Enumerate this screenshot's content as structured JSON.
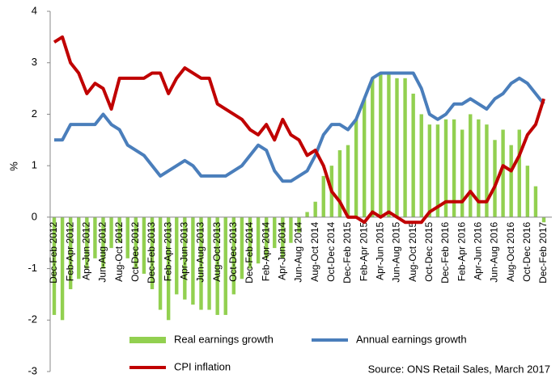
{
  "chart_data": {
    "type": "bar-line",
    "y_label": "%",
    "source": "Source: ONS Retail Sales, March 2017",
    "categories": [
      "Dec-Feb 2012",
      null,
      "Feb-Apr 2012",
      null,
      "Apr-Jun 2012",
      null,
      "Jun-Aug 2012",
      null,
      "Aug-Oct 2012",
      null,
      "Oct-Dec 2012",
      null,
      "Dec-Feb 2013",
      null,
      "Feb-Apr 2013",
      null,
      "Apr-Jun 2013",
      null,
      "Jun-Aug 2013",
      null,
      "Aug-Oct 2013",
      null,
      "Oct-Dec 2013",
      null,
      "Dec-Feb 2014",
      null,
      "Feb-Apr 2014",
      null,
      "Apr-Jun 2014",
      null,
      "Jun-Aug 2014",
      null,
      "Aug-Oct 2014",
      null,
      "Oct-Dec 2014",
      null,
      "Dec-Feb 2015",
      null,
      "Feb-Apr 2015",
      null,
      "Apr-Jun 2015",
      null,
      "Jun-Aug 2015",
      null,
      "Aug-Oct 2015",
      null,
      "Oct-Dec 2015",
      null,
      "Dec-Feb 2016",
      null,
      "Feb-Apr 2016",
      null,
      "Apr-Jun 2016",
      null,
      "Jun-Aug 2016",
      null,
      "Aug-Oct 2016",
      null,
      "Oct-Dec 2016",
      null,
      "Dec-Feb 2017"
    ],
    "series": [
      {
        "name": "Real earnings growth",
        "kind": "bar",
        "color": "#92d050",
        "values": [
          -1.9,
          -2.0,
          -1.4,
          -1.2,
          -1.0,
          -0.8,
          -1.0,
          -0.6,
          -0.5,
          -0.8,
          -1.0,
          -1.1,
          -1.4,
          -1.8,
          -2.0,
          -1.5,
          -1.6,
          -1.7,
          -1.8,
          -1.8,
          -1.9,
          -1.9,
          -1.5,
          -1.2,
          -1.0,
          -0.9,
          -0.8,
          -0.6,
          -0.8,
          -0.5,
          -0.3,
          0.1,
          0.3,
          0.8,
          1.0,
          1.3,
          1.4,
          1.9,
          2.3,
          2.7,
          2.8,
          2.8,
          2.7,
          2.7,
          2.4,
          2.0,
          1.8,
          1.8,
          1.9,
          1.9,
          1.7,
          2.0,
          1.9,
          1.8,
          1.5,
          1.7,
          1.4,
          1.7,
          1.0,
          0.6,
          -0.1
        ]
      },
      {
        "name": "Annual earnings growth",
        "kind": "line",
        "color": "#4a7ebb",
        "values": [
          1.5,
          1.5,
          1.8,
          1.8,
          1.8,
          1.8,
          2.0,
          1.8,
          1.7,
          1.4,
          1.3,
          1.2,
          1.0,
          0.8,
          0.9,
          1.0,
          1.1,
          1.0,
          0.8,
          0.8,
          0.8,
          0.8,
          0.9,
          1.0,
          1.2,
          1.4,
          1.3,
          0.9,
          0.7,
          0.7,
          0.8,
          0.9,
          1.2,
          1.6,
          1.8,
          1.8,
          1.7,
          1.9,
          2.3,
          2.7,
          2.8,
          2.8,
          2.8,
          2.8,
          2.8,
          2.5,
          2.0,
          1.9,
          2.0,
          2.2,
          2.2,
          2.3,
          2.2,
          2.1,
          2.3,
          2.4,
          2.6,
          2.7,
          2.6,
          2.4,
          2.2
        ]
      },
      {
        "name": "CPI inflation",
        "kind": "line",
        "color": "#c00000",
        "values": [
          3.4,
          3.5,
          3.0,
          2.8,
          2.4,
          2.6,
          2.5,
          2.1,
          2.7,
          2.7,
          2.7,
          2.7,
          2.8,
          2.8,
          2.4,
          2.7,
          2.9,
          2.8,
          2.7,
          2.7,
          2.2,
          2.1,
          2.0,
          1.9,
          1.7,
          1.6,
          1.8,
          1.5,
          1.9,
          1.6,
          1.5,
          1.2,
          1.3,
          1.0,
          0.5,
          0.3,
          0.0,
          0.0,
          -0.1,
          0.1,
          0.0,
          0.1,
          0.0,
          -0.1,
          -0.1,
          -0.1,
          0.1,
          0.2,
          0.3,
          0.3,
          0.3,
          0.5,
          0.3,
          0.3,
          0.6,
          1.0,
          0.9,
          1.2,
          1.6,
          1.8,
          2.3
        ]
      }
    ],
    "ylim": [
      -3,
      4
    ],
    "yticks": [
      -3,
      -2,
      -1,
      0,
      1,
      2,
      3,
      4
    ]
  }
}
